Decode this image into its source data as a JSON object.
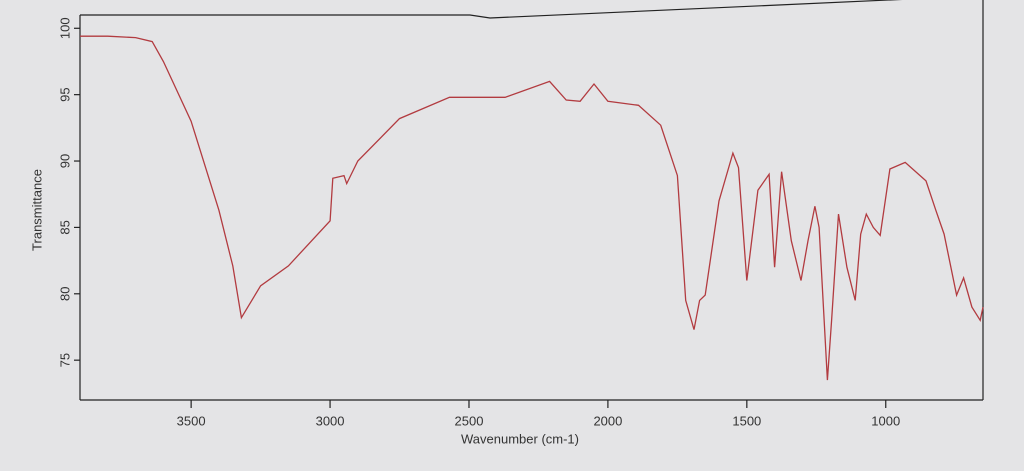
{
  "chart_data": {
    "type": "line",
    "x_label": "Wavenumber (cm-1)",
    "y_label": "Transmittance",
    "xlim": [
      3900,
      650
    ],
    "ylim": [
      72,
      101
    ],
    "xticks": [
      3500,
      3000,
      2500,
      2000,
      1500,
      1000
    ],
    "yticks": [
      75,
      80,
      85,
      90,
      95,
      100
    ],
    "x": [
      3900,
      3800,
      3700,
      3640,
      3600,
      3500,
      3400,
      3350,
      3319,
      3250,
      3150,
      3000,
      2990,
      2950,
      2940,
      2900,
      2750,
      2570,
      2370,
      2210,
      2150,
      2100,
      2050,
      2000,
      1890,
      1810,
      1750,
      1720,
      1690,
      1670,
      1650,
      1600,
      1550,
      1530,
      1500,
      1460,
      1420,
      1400,
      1375,
      1340,
      1305,
      1280,
      1255,
      1240,
      1210,
      1195,
      1170,
      1140,
      1110,
      1090,
      1070,
      1045,
      1020,
      985,
      930,
      855,
      820,
      790,
      745,
      720,
      690,
      660,
      650
    ],
    "series": [
      {
        "name": "Transmittance",
        "color": "#b23b40",
        "values": [
          99.4,
          99.4,
          99.3,
          99.0,
          97.5,
          93.0,
          86.3,
          82.1,
          78.2,
          80.6,
          82.1,
          85.5,
          88.7,
          88.9,
          88.3,
          90.0,
          93.2,
          94.8,
          94.8,
          96.0,
          94.6,
          94.5,
          95.8,
          94.5,
          94.2,
          92.7,
          88.9,
          79.5,
          77.3,
          79.5,
          79.9,
          87.0,
          90.6,
          89.5,
          81.0,
          87.8,
          89.0,
          82.0,
          89.2,
          84.0,
          81.0,
          84.0,
          86.6,
          85.0,
          73.5,
          78.0,
          86.0,
          82.0,
          79.5,
          84.5,
          86.0,
          85.0,
          84.4,
          89.4,
          89.9,
          88.5,
          86.3,
          84.5,
          79.9,
          81.2,
          79.0,
          78.0,
          79.0
        ]
      }
    ],
    "grid": false
  }
}
